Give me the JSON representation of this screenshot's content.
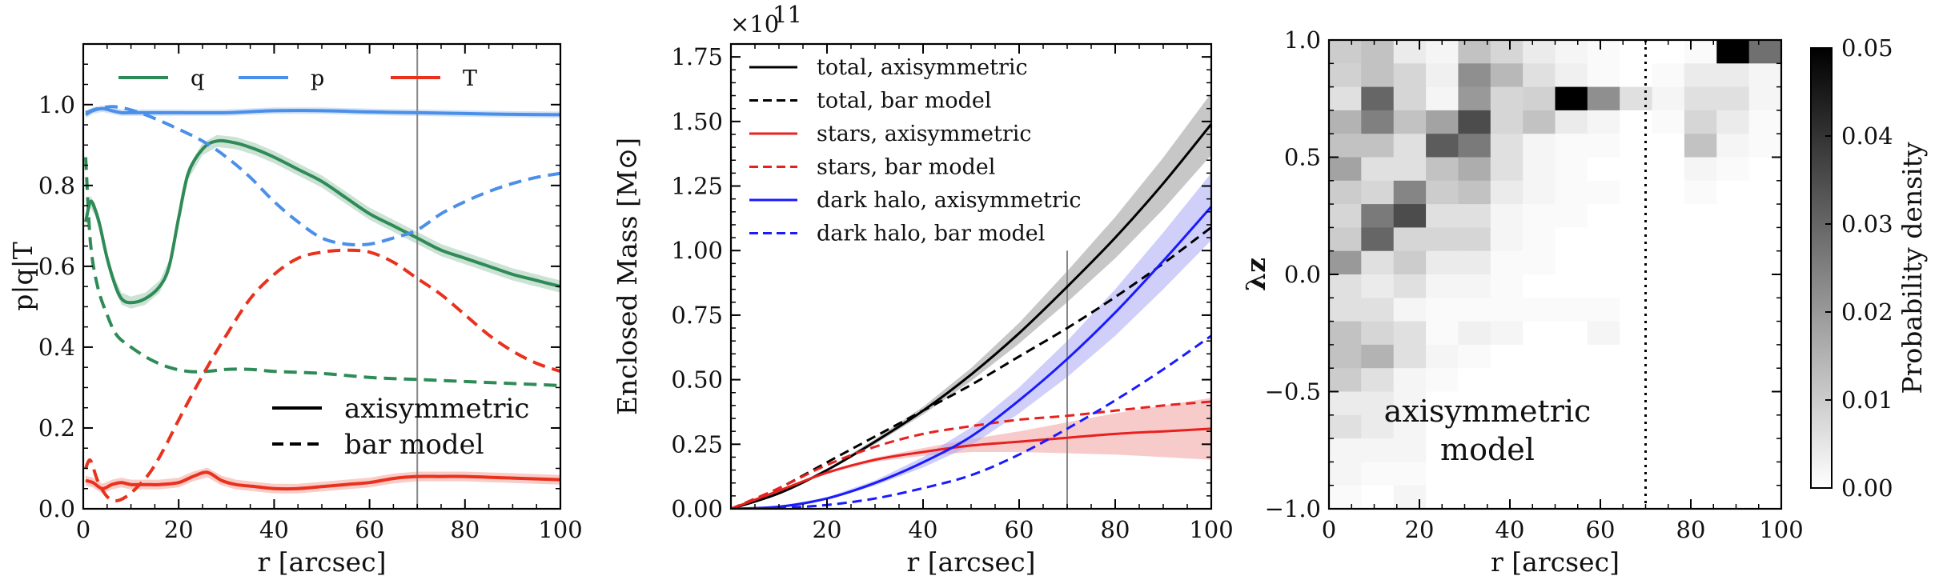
{
  "chart_data": [
    {
      "type": "line",
      "title": "",
      "xlabel": "r [arcsec]",
      "ylabel": "p|q|T",
      "xlim": [
        0,
        100
      ],
      "ylim": [
        0,
        1.15
      ],
      "xticks": [
        0,
        20,
        40,
        60,
        80,
        100
      ],
      "yticks": [
        0.0,
        0.2,
        0.4,
        0.6,
        0.8,
        1.0
      ],
      "vline": 70,
      "legend_top": [
        {
          "name": "q",
          "color": "#2e8b57"
        },
        {
          "name": "p",
          "color": "#4c8fe8"
        },
        {
          "name": "T",
          "color": "#e8321e"
        }
      ],
      "legend_bottom": [
        {
          "name": "axisymmetric",
          "style": "solid"
        },
        {
          "name": "bar model",
          "style": "dashed"
        }
      ],
      "series": [
        {
          "name": "q",
          "model": "axisymmetric",
          "color": "#2e8b57",
          "dash": false,
          "band": 0.015,
          "x": [
            0.5,
            1.5,
            2.5,
            3.5,
            5,
            6.5,
            8,
            10,
            13,
            16,
            18,
            20,
            22,
            25,
            28,
            32,
            36,
            40,
            45,
            50,
            55,
            60,
            65,
            70,
            75,
            80,
            85,
            90,
            95,
            100
          ],
          "y": [
            0.71,
            0.76,
            0.74,
            0.7,
            0.62,
            0.56,
            0.52,
            0.51,
            0.52,
            0.55,
            0.6,
            0.72,
            0.83,
            0.89,
            0.91,
            0.905,
            0.89,
            0.87,
            0.84,
            0.81,
            0.77,
            0.73,
            0.7,
            0.67,
            0.64,
            0.62,
            0.6,
            0.58,
            0.565,
            0.55
          ]
        },
        {
          "name": "p",
          "model": "axisymmetric",
          "color": "#4c8fe8",
          "dash": false,
          "band": 0.008,
          "x": [
            0.5,
            2,
            4,
            6,
            8,
            10,
            15,
            20,
            30,
            40,
            50,
            60,
            70,
            80,
            90,
            100
          ],
          "y": [
            0.975,
            0.985,
            0.99,
            0.985,
            0.98,
            0.98,
            0.98,
            0.98,
            0.98,
            0.985,
            0.985,
            0.982,
            0.98,
            0.978,
            0.976,
            0.975
          ]
        },
        {
          "name": "T",
          "model": "axisymmetric",
          "color": "#e8321e",
          "dash": false,
          "band": 0.012,
          "x": [
            0.5,
            2,
            4,
            6,
            8,
            10,
            13,
            16,
            20,
            23,
            26,
            29,
            32,
            36,
            40,
            45,
            50,
            55,
            60,
            65,
            70,
            75,
            80,
            85,
            90,
            95,
            100
          ],
          "y": [
            0.07,
            0.065,
            0.05,
            0.06,
            0.065,
            0.06,
            0.06,
            0.06,
            0.065,
            0.08,
            0.09,
            0.07,
            0.06,
            0.055,
            0.05,
            0.05,
            0.055,
            0.06,
            0.065,
            0.075,
            0.08,
            0.08,
            0.08,
            0.078,
            0.076,
            0.074,
            0.072
          ]
        },
        {
          "name": "q",
          "model": "bar model",
          "color": "#2e8b57",
          "dash": true,
          "x": [
            0.5,
            1.5,
            3,
            5,
            7,
            10,
            14,
            18,
            22,
            26,
            30,
            35,
            40,
            50,
            60,
            70,
            80,
            90,
            100
          ],
          "y": [
            0.87,
            0.66,
            0.55,
            0.48,
            0.43,
            0.4,
            0.37,
            0.35,
            0.34,
            0.34,
            0.345,
            0.345,
            0.34,
            0.335,
            0.325,
            0.32,
            0.315,
            0.31,
            0.305
          ]
        },
        {
          "name": "p",
          "model": "bar model",
          "color": "#4c8fe8",
          "dash": true,
          "x": [
            0.5,
            3,
            6,
            9,
            13,
            18,
            25,
            30,
            35,
            40,
            45,
            50,
            55,
            60,
            65,
            70,
            75,
            80,
            85,
            90,
            95,
            100
          ],
          "y": [
            0.98,
            0.99,
            0.995,
            0.99,
            0.975,
            0.95,
            0.91,
            0.87,
            0.82,
            0.76,
            0.71,
            0.67,
            0.655,
            0.655,
            0.67,
            0.69,
            0.73,
            0.76,
            0.785,
            0.805,
            0.82,
            0.83
          ]
        },
        {
          "name": "T",
          "model": "bar model",
          "color": "#e8321e",
          "dash": true,
          "x": [
            0.5,
            1.5,
            3,
            5,
            7,
            9,
            11,
            14,
            17,
            20,
            25,
            30,
            35,
            40,
            45,
            50,
            55,
            60,
            65,
            70,
            75,
            80,
            85,
            90,
            95,
            100
          ],
          "y": [
            0.1,
            0.12,
            0.07,
            0.03,
            0.02,
            0.03,
            0.05,
            0.09,
            0.15,
            0.22,
            0.33,
            0.43,
            0.52,
            0.58,
            0.62,
            0.635,
            0.64,
            0.635,
            0.61,
            0.57,
            0.53,
            0.48,
            0.43,
            0.39,
            0.36,
            0.34
          ]
        }
      ]
    },
    {
      "type": "line",
      "title": "",
      "xlabel": "r [arcsec]",
      "ylabel": "Enclosed Mass [M⊙]",
      "scale_label": "×10",
      "scale_exponent": "11",
      "xlim": [
        0,
        100
      ],
      "ylim": [
        0,
        1.8
      ],
      "xticks": [
        20,
        40,
        60,
        80,
        100
      ],
      "yticks": [
        0.0,
        0.25,
        0.5,
        0.75,
        1.0,
        1.25,
        1.5,
        1.75
      ],
      "vline": 70,
      "legend": [
        {
          "name": "total, axisymmetric",
          "color": "#000000",
          "dash": false
        },
        {
          "name": "total, bar model",
          "color": "#000000",
          "dash": true
        },
        {
          "name": "stars, axisymmetric",
          "color": "#e8201e",
          "dash": false
        },
        {
          "name": "stars, bar model",
          "color": "#e8201e",
          "dash": true
        },
        {
          "name": "dark halo, axisymmetric",
          "color": "#1a1aff",
          "dash": false
        },
        {
          "name": "dark halo, bar model",
          "color": "#1a1aff",
          "dash": true
        }
      ],
      "series": [
        {
          "name": "total, axisymmetric",
          "color": "#000000",
          "dash": false,
          "band_color": "#999999",
          "x": [
            0,
            10,
            20,
            30,
            40,
            50,
            60,
            70,
            80,
            90,
            100
          ],
          "y": [
            0.0,
            0.06,
            0.15,
            0.26,
            0.38,
            0.52,
            0.68,
            0.86,
            1.05,
            1.26,
            1.49
          ],
          "band": [
            0.0,
            0.002,
            0.005,
            0.01,
            0.015,
            0.025,
            0.04,
            0.06,
            0.08,
            0.1,
            0.12
          ]
        },
        {
          "name": "total, bar model",
          "color": "#000000",
          "dash": true,
          "x": [
            0,
            10,
            20,
            30,
            40,
            50,
            60,
            70,
            80,
            90,
            100
          ],
          "y": [
            0.0,
            0.08,
            0.18,
            0.28,
            0.38,
            0.48,
            0.59,
            0.7,
            0.82,
            0.95,
            1.09
          ]
        },
        {
          "name": "stars, axisymmetric",
          "color": "#e8201e",
          "dash": false,
          "band_color": "#f3a0a0",
          "x": [
            0,
            10,
            20,
            30,
            40,
            50,
            60,
            70,
            80,
            90,
            100
          ],
          "y": [
            0.0,
            0.07,
            0.14,
            0.19,
            0.22,
            0.245,
            0.26,
            0.275,
            0.29,
            0.3,
            0.31
          ],
          "band": [
            0.0,
            0.002,
            0.004,
            0.008,
            0.015,
            0.025,
            0.04,
            0.06,
            0.08,
            0.1,
            0.12
          ]
        },
        {
          "name": "stars, bar model",
          "color": "#e8201e",
          "dash": true,
          "x": [
            0,
            10,
            20,
            30,
            40,
            50,
            60,
            70,
            80,
            90,
            100
          ],
          "y": [
            0.0,
            0.08,
            0.17,
            0.24,
            0.29,
            0.32,
            0.345,
            0.36,
            0.38,
            0.4,
            0.415
          ]
        },
        {
          "name": "dark halo, axisymmetric",
          "color": "#1a1aff",
          "dash": false,
          "band_color": "#a8a8f5",
          "x": [
            0,
            10,
            20,
            30,
            40,
            50,
            60,
            70,
            80,
            90,
            100
          ],
          "y": [
            0.0,
            0.008,
            0.04,
            0.1,
            0.18,
            0.28,
            0.42,
            0.58,
            0.76,
            0.96,
            1.17
          ],
          "band": [
            0.0,
            0.002,
            0.005,
            0.01,
            0.02,
            0.035,
            0.05,
            0.07,
            0.09,
            0.11,
            0.13
          ]
        },
        {
          "name": "dark halo, bar model",
          "color": "#1a1aff",
          "dash": true,
          "x": [
            0,
            10,
            20,
            30,
            40,
            50,
            60,
            70,
            80,
            90,
            100
          ],
          "y": [
            0.0,
            0.003,
            0.015,
            0.04,
            0.08,
            0.13,
            0.21,
            0.31,
            0.42,
            0.54,
            0.67
          ]
        }
      ]
    },
    {
      "type": "heatmap",
      "title": "",
      "xlabel": "r [arcsec]",
      "ylabel": "λz",
      "xlim": [
        0,
        100
      ],
      "ylim": [
        -1.0,
        1.0
      ],
      "xticks": [
        0,
        20,
        40,
        60,
        80,
        100
      ],
      "yticks": [
        -1.0,
        -0.5,
        0.0,
        0.5,
        1.0
      ],
      "ytick_labels": [
        "−1.0",
        "−0.5",
        "0.0",
        "0.5",
        "1.0"
      ],
      "vline": 70,
      "annotation": [
        "axisymmetric",
        "model"
      ],
      "colorbar": {
        "label": "Probability density",
        "min": 0.0,
        "max": 0.05,
        "ticks": [
          0.0,
          0.01,
          0.02,
          0.03,
          0.04,
          0.05
        ]
      },
      "x_bins": [
        0,
        7.14,
        14.29,
        21.43,
        28.57,
        35.71,
        42.86,
        50,
        57.14,
        64.29,
        71.43,
        78.57,
        85.71,
        92.86,
        100
      ],
      "y_bins": [
        1.0,
        0.9,
        0.8,
        0.7,
        0.6,
        0.5,
        0.4,
        0.3,
        0.2,
        0.1,
        0.0,
        -0.1,
        -0.2,
        -0.3,
        -0.4,
        -0.5,
        -0.6,
        -0.7,
        -0.8,
        -0.9,
        -1.0
      ],
      "values": [
        [
          0.01,
          0.012,
          0.004,
          0.002,
          0.012,
          0.008,
          0.004,
          0.002,
          0.001,
          0.0,
          0.0,
          0.001,
          0.05,
          0.028
        ],
        [
          0.009,
          0.012,
          0.008,
          0.003,
          0.022,
          0.014,
          0.006,
          0.003,
          0.001,
          0.0,
          0.001,
          0.004,
          0.004,
          0.002
        ],
        [
          0.006,
          0.03,
          0.008,
          0.002,
          0.02,
          0.008,
          0.009,
          0.05,
          0.022,
          0.006,
          0.002,
          0.006,
          0.006,
          0.002
        ],
        [
          0.015,
          0.025,
          0.012,
          0.018,
          0.035,
          0.008,
          0.012,
          0.004,
          0.002,
          0.0,
          0.001,
          0.008,
          0.004,
          0.001
        ],
        [
          0.012,
          0.012,
          0.006,
          0.032,
          0.026,
          0.006,
          0.002,
          0.001,
          0.001,
          0.0,
          0.0,
          0.012,
          0.002,
          0.001
        ],
        [
          0.018,
          0.006,
          0.006,
          0.012,
          0.016,
          0.006,
          0.002,
          0.001,
          0.0,
          0.0,
          0.0,
          0.002,
          0.001,
          0.0
        ],
        [
          0.01,
          0.008,
          0.024,
          0.01,
          0.012,
          0.004,
          0.002,
          0.001,
          0.001,
          0.0,
          0.0,
          0.001,
          0.0,
          0.0
        ],
        [
          0.008,
          0.026,
          0.035,
          0.006,
          0.006,
          0.002,
          0.001,
          0.001,
          0.0,
          0.0,
          0.0,
          0.0,
          0.0,
          0.0
        ],
        [
          0.01,
          0.03,
          0.008,
          0.008,
          0.008,
          0.002,
          0.001,
          0.0,
          0.0,
          0.0,
          0.0,
          0.0,
          0.0,
          0.0
        ],
        [
          0.02,
          0.006,
          0.01,
          0.004,
          0.004,
          0.001,
          0.001,
          0.0,
          0.0,
          0.0,
          0.0,
          0.0,
          0.0,
          0.0
        ],
        [
          0.006,
          0.004,
          0.006,
          0.002,
          0.002,
          0.001,
          0.0,
          0.0,
          0.0,
          0.0,
          0.0,
          0.0,
          0.0,
          0.0
        ],
        [
          0.006,
          0.006,
          0.002,
          0.001,
          0.001,
          0.001,
          0.001,
          0.001,
          0.001,
          0.0,
          0.0,
          0.0,
          0.0,
          0.0
        ],
        [
          0.012,
          0.008,
          0.006,
          0.001,
          0.003,
          0.002,
          0.0,
          0.0,
          0.002,
          0.0,
          0.0,
          0.0,
          0.0,
          0.0
        ],
        [
          0.012,
          0.015,
          0.006,
          0.002,
          0.001,
          0.0,
          0.0,
          0.0,
          0.0,
          0.0,
          0.0,
          0.0,
          0.0,
          0.0
        ],
        [
          0.01,
          0.006,
          0.002,
          0.001,
          0.0,
          0.0,
          0.0,
          0.0,
          0.0,
          0.0,
          0.0,
          0.0,
          0.0,
          0.0
        ],
        [
          0.004,
          0.004,
          0.002,
          0.0,
          0.0,
          0.0,
          0.0,
          0.0,
          0.0,
          0.0,
          0.0,
          0.0,
          0.0,
          0.0
        ],
        [
          0.006,
          0.004,
          0.002,
          0.0,
          0.0,
          0.0,
          0.0,
          0.0,
          0.0,
          0.0,
          0.0,
          0.0,
          0.0,
          0.0
        ],
        [
          0.002,
          0.002,
          0.002,
          0.0,
          0.0,
          0.0,
          0.0,
          0.0,
          0.0,
          0.0,
          0.0,
          0.0,
          0.0,
          0.0
        ],
        [
          0.002,
          0.001,
          0.001,
          0.0,
          0.0,
          0.0,
          0.0,
          0.0,
          0.0,
          0.0,
          0.0,
          0.0,
          0.0,
          0.0
        ],
        [
          0.001,
          0.0,
          0.002,
          0.0,
          0.0,
          0.0,
          0.0,
          0.0,
          0.0,
          0.0,
          0.0,
          0.0,
          0.0,
          0.0
        ]
      ]
    }
  ]
}
